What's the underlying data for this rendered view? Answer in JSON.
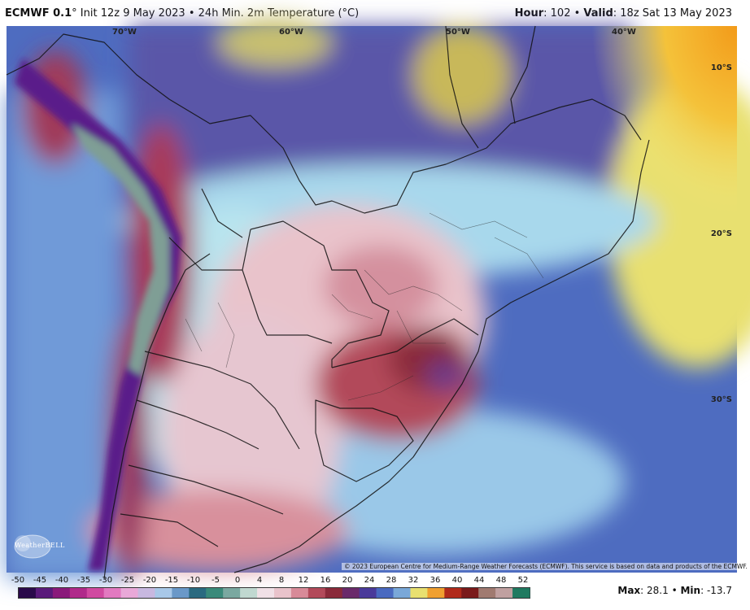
{
  "header": {
    "model": "ECMWF 0.1",
    "degree": "°",
    "init": "Init 12z 9 May 2023",
    "bullet": "•",
    "product": "24h Min. 2m Temperature (°C)",
    "hour_label": "Hour",
    "hour_value": ": 102",
    "valid_label": "Valid",
    "valid_value": ": 18z Sat 13 May 2023"
  },
  "map": {
    "longitude_labels": [
      "70°W",
      "60°W",
      "50°W",
      "40°W"
    ],
    "latitude_labels": [
      "10°S",
      "20°S",
      "30°S"
    ],
    "copyright": "© 2023 European Centre for Medium-Range Weather Forecasts (ECMWF). This service is based on data and products of the ECMWF.",
    "logo_text": "WeatherBELL",
    "colors": {
      "ocean_pacific": "#5b7fd0",
      "ocean_atlantic": "#4a63b8",
      "amazon_cool": "#5a56a8",
      "warm_pink": "#e9c3cb",
      "warm_red": "#b24a5a",
      "andes_purple": "#5a1a8a",
      "coast_orange": "#f39b1a",
      "coast_yellow": "#f4e77a"
    }
  },
  "legend": {
    "ticks": [
      "-50",
      "-45",
      "-40",
      "-35",
      "-30",
      "-25",
      "-20",
      "-15",
      "-10",
      "-5",
      "0",
      "4",
      "8",
      "12",
      "16",
      "20",
      "24",
      "28",
      "32",
      "36",
      "40",
      "44",
      "48",
      "52"
    ],
    "colors": [
      "#2a0a4a",
      "#5a1a7a",
      "#8a1a7a",
      "#b02a8a",
      "#d04aa0",
      "#e27ac0",
      "#e9a8d8",
      "#c8b8e0",
      "#a8c8e8",
      "#6a98c8",
      "#2a6a80",
      "#3a8a7a",
      "#7aa8a0",
      "#c0d8d0",
      "#f0e0e6",
      "#e9c3cb",
      "#d88a98",
      "#b24a5a",
      "#8a2a3a",
      "#6a2a6a",
      "#4a3a9a",
      "#4a6ac0",
      "#7aa8d8",
      "#e8e070",
      "#f0a030",
      "#b02a1a",
      "#7a1a1a",
      "#a07a70",
      "#c0a0a0",
      "#207a60"
    ],
    "max_label": "Max",
    "max_value": ": 28.1",
    "min_label": "Min",
    "min_value": ": -13.7"
  }
}
